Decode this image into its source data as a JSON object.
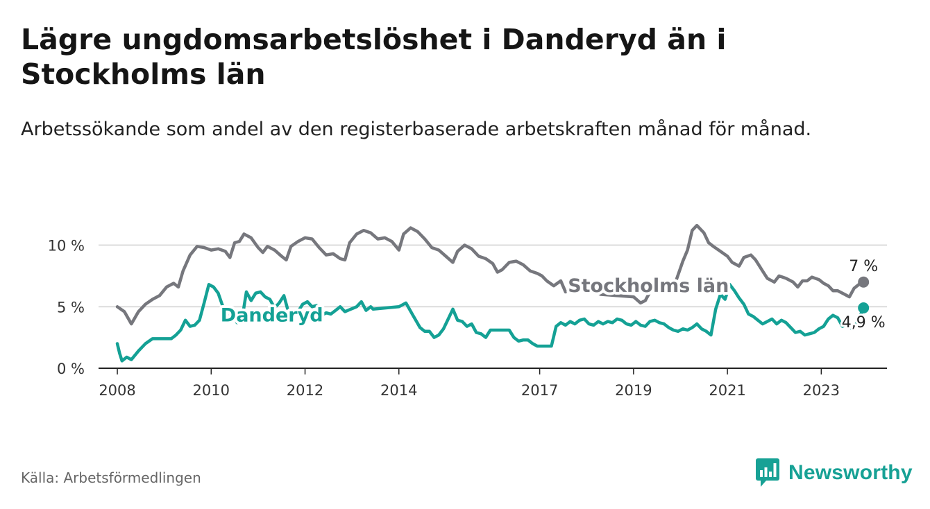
{
  "header": {
    "title": "Lägre ungdomsarbetslöshet i Danderyd än i Stockholms län",
    "subtitle": "Arbetssökande som andel av den registerbaserade arbetskraften månad för månad."
  },
  "footer": {
    "source": "Källa: Arbetsförmedlingen",
    "brand": "Newsworthy"
  },
  "colors": {
    "stockholm": "#76777d",
    "danderyd": "#14a195",
    "grid": "#dcdcdc",
    "axis": "#222222",
    "brand": "#17a195"
  },
  "chart_data": {
    "type": "line",
    "title": "Lägre ungdomsarbetslöshet i Danderyd än i Stockholms län",
    "xlabel": "",
    "ylabel": "",
    "xlim": [
      2007.6,
      2024.4
    ],
    "ylim": [
      0,
      12
    ],
    "y_ticks": [
      {
        "value": 0,
        "label": "0 %"
      },
      {
        "value": 5,
        "label": "5 %"
      },
      {
        "value": 10,
        "label": "10 %"
      }
    ],
    "x_ticks": [
      {
        "value": 2008,
        "label": "2008"
      },
      {
        "value": 2010,
        "label": "2010"
      },
      {
        "value": 2012,
        "label": "2012"
      },
      {
        "value": 2014,
        "label": "2014"
      },
      {
        "value": 2017,
        "label": "2017"
      },
      {
        "value": 2019,
        "label": "2019"
      },
      {
        "value": 2021,
        "label": "2021"
      },
      {
        "value": 2023,
        "label": "2023"
      }
    ],
    "grid": true,
    "series": [
      {
        "name": "Stockholms län",
        "label": "Stockholms län",
        "end_label": "7 %",
        "color": "#76777d",
        "label_at": [
          2017.6,
          6.2
        ],
        "points": [
          [
            2008.0,
            5.0
          ],
          [
            2008.15,
            4.6
          ],
          [
            2008.3,
            3.6
          ],
          [
            2008.45,
            4.6
          ],
          [
            2008.6,
            5.2
          ],
          [
            2008.75,
            5.6
          ],
          [
            2008.9,
            5.9
          ],
          [
            2009.05,
            6.6
          ],
          [
            2009.2,
            6.9
          ],
          [
            2009.3,
            6.6
          ],
          [
            2009.4,
            7.9
          ],
          [
            2009.55,
            9.2
          ],
          [
            2009.7,
            9.9
          ],
          [
            2009.85,
            9.8
          ],
          [
            2010.0,
            9.6
          ],
          [
            2010.15,
            9.7
          ],
          [
            2010.3,
            9.5
          ],
          [
            2010.4,
            9.0
          ],
          [
            2010.5,
            10.2
          ],
          [
            2010.6,
            10.3
          ],
          [
            2010.7,
            10.9
          ],
          [
            2010.85,
            10.6
          ],
          [
            2011.0,
            9.8
          ],
          [
            2011.1,
            9.4
          ],
          [
            2011.2,
            9.9
          ],
          [
            2011.35,
            9.6
          ],
          [
            2011.5,
            9.1
          ],
          [
            2011.6,
            8.8
          ],
          [
            2011.7,
            9.9
          ],
          [
            2011.85,
            10.3
          ],
          [
            2012.0,
            10.6
          ],
          [
            2012.15,
            10.5
          ],
          [
            2012.3,
            9.8
          ],
          [
            2012.45,
            9.2
          ],
          [
            2012.6,
            9.3
          ],
          [
            2012.75,
            8.9
          ],
          [
            2012.85,
            8.8
          ],
          [
            2012.95,
            10.2
          ],
          [
            2013.1,
            10.9
          ],
          [
            2013.25,
            11.2
          ],
          [
            2013.4,
            11.0
          ],
          [
            2013.55,
            10.5
          ],
          [
            2013.7,
            10.6
          ],
          [
            2013.85,
            10.3
          ],
          [
            2014.0,
            9.6
          ],
          [
            2014.1,
            10.9
          ],
          [
            2014.25,
            11.4
          ],
          [
            2014.4,
            11.1
          ],
          [
            2014.55,
            10.5
          ],
          [
            2014.7,
            9.8
          ],
          [
            2014.85,
            9.6
          ],
          [
            2015.0,
            9.1
          ],
          [
            2015.15,
            8.6
          ],
          [
            2015.25,
            9.5
          ],
          [
            2015.4,
            10.0
          ],
          [
            2015.55,
            9.7
          ],
          [
            2015.7,
            9.1
          ],
          [
            2015.85,
            8.9
          ],
          [
            2016.0,
            8.5
          ],
          [
            2016.1,
            7.8
          ],
          [
            2016.2,
            8.0
          ],
          [
            2016.35,
            8.6
          ],
          [
            2016.5,
            8.7
          ],
          [
            2016.65,
            8.4
          ],
          [
            2016.8,
            7.9
          ],
          [
            2016.95,
            7.7
          ],
          [
            2017.05,
            7.5
          ],
          [
            2017.15,
            7.1
          ],
          [
            2017.3,
            6.7
          ],
          [
            2017.45,
            7.1
          ],
          [
            2017.55,
            6.2
          ],
          [
            2018.0,
            6.7
          ],
          [
            2018.3,
            6.0
          ],
          [
            2019.0,
            5.8
          ],
          [
            2019.15,
            5.3
          ],
          [
            2019.25,
            5.5
          ],
          [
            2019.35,
            6.2
          ],
          [
            2019.85,
            6.5
          ],
          [
            2019.95,
            7.6
          ],
          [
            2020.05,
            8.7
          ],
          [
            2020.15,
            9.6
          ],
          [
            2020.25,
            11.2
          ],
          [
            2020.35,
            11.6
          ],
          [
            2020.5,
            11.0
          ],
          [
            2020.6,
            10.2
          ],
          [
            2020.7,
            9.9
          ],
          [
            2020.85,
            9.5
          ],
          [
            2021.0,
            9.1
          ],
          [
            2021.1,
            8.6
          ],
          [
            2021.25,
            8.3
          ],
          [
            2021.35,
            9.0
          ],
          [
            2021.5,
            9.2
          ],
          [
            2021.6,
            8.8
          ],
          [
            2021.75,
            7.9
          ],
          [
            2021.85,
            7.3
          ],
          [
            2022.0,
            7.0
          ],
          [
            2022.1,
            7.5
          ],
          [
            2022.25,
            7.3
          ],
          [
            2022.4,
            7.0
          ],
          [
            2022.5,
            6.6
          ],
          [
            2022.6,
            7.1
          ],
          [
            2022.7,
            7.1
          ],
          [
            2022.8,
            7.4
          ],
          [
            2022.95,
            7.2
          ],
          [
            2023.05,
            6.9
          ],
          [
            2023.15,
            6.7
          ],
          [
            2023.25,
            6.3
          ],
          [
            2023.35,
            6.3
          ],
          [
            2023.5,
            6.0
          ],
          [
            2023.6,
            5.8
          ],
          [
            2023.7,
            6.5
          ],
          [
            2023.8,
            6.8
          ],
          [
            2023.9,
            7.0
          ]
        ]
      },
      {
        "name": "Danderyd",
        "label": "Danderyd",
        "end_label": "4,9 %",
        "color": "#14a195",
        "label_at": [
          2010.2,
          3.8
        ],
        "points": [
          [
            2008.0,
            2.0
          ],
          [
            2008.05,
            1.2
          ],
          [
            2008.1,
            0.6
          ],
          [
            2008.2,
            0.9
          ],
          [
            2008.3,
            0.7
          ],
          [
            2008.45,
            1.4
          ],
          [
            2008.6,
            2.0
          ],
          [
            2008.75,
            2.4
          ],
          [
            2008.9,
            2.4
          ],
          [
            2009.05,
            2.4
          ],
          [
            2009.15,
            2.4
          ],
          [
            2009.25,
            2.7
          ],
          [
            2009.35,
            3.1
          ],
          [
            2009.45,
            3.9
          ],
          [
            2009.55,
            3.4
          ],
          [
            2009.65,
            3.5
          ],
          [
            2009.75,
            3.9
          ],
          [
            2009.85,
            5.3
          ],
          [
            2009.95,
            6.8
          ],
          [
            2010.05,
            6.6
          ],
          [
            2010.15,
            6.1
          ],
          [
            2010.25,
            5.0
          ],
          [
            2010.35,
            4.3
          ],
          [
            2010.45,
            4.6
          ],
          [
            2010.55,
            3.7
          ],
          [
            2010.65,
            3.8
          ],
          [
            2010.75,
            6.2
          ],
          [
            2010.85,
            5.5
          ],
          [
            2010.95,
            6.1
          ],
          [
            2011.05,
            6.2
          ],
          [
            2011.15,
            5.8
          ],
          [
            2011.25,
            5.6
          ],
          [
            2011.35,
            4.9
          ],
          [
            2011.45,
            5.3
          ],
          [
            2011.55,
            5.9
          ],
          [
            2011.65,
            4.5
          ],
          [
            2011.75,
            4.7
          ],
          [
            2011.85,
            4.6
          ],
          [
            2011.95,
            5.2
          ],
          [
            2012.05,
            5.4
          ],
          [
            2012.15,
            5.0
          ],
          [
            2012.25,
            5.1
          ],
          [
            2012.35,
            4.3
          ],
          [
            2012.45,
            4.5
          ],
          [
            2012.55,
            4.4
          ],
          [
            2012.65,
            4.7
          ],
          [
            2012.75,
            5.0
          ],
          [
            2012.85,
            4.6
          ],
          [
            2013.1,
            5.0
          ],
          [
            2013.2,
            5.4
          ],
          [
            2013.3,
            4.7
          ],
          [
            2013.4,
            5.0
          ],
          [
            2013.45,
            4.8
          ],
          [
            2014.0,
            5.0
          ],
          [
            2014.15,
            5.3
          ],
          [
            2014.3,
            4.3
          ],
          [
            2014.45,
            3.3
          ],
          [
            2014.55,
            3.0
          ],
          [
            2014.65,
            3.0
          ],
          [
            2014.75,
            2.5
          ],
          [
            2014.85,
            2.7
          ],
          [
            2014.95,
            3.2
          ],
          [
            2015.05,
            4.0
          ],
          [
            2015.15,
            4.8
          ],
          [
            2015.25,
            3.9
          ],
          [
            2015.35,
            3.8
          ],
          [
            2015.45,
            3.4
          ],
          [
            2015.55,
            3.6
          ],
          [
            2015.65,
            2.9
          ],
          [
            2015.75,
            2.8
          ],
          [
            2015.85,
            2.5
          ],
          [
            2015.95,
            3.1
          ],
          [
            2016.1,
            3.1
          ],
          [
            2016.25,
            3.1
          ],
          [
            2016.35,
            3.1
          ],
          [
            2016.45,
            2.5
          ],
          [
            2016.55,
            2.2
          ],
          [
            2016.65,
            2.3
          ],
          [
            2016.75,
            2.3
          ],
          [
            2016.85,
            2.0
          ],
          [
            2016.95,
            1.8
          ],
          [
            2017.1,
            1.8
          ],
          [
            2017.25,
            1.8
          ],
          [
            2017.35,
            3.4
          ],
          [
            2017.45,
            3.7
          ],
          [
            2017.55,
            3.5
          ],
          [
            2017.65,
            3.8
          ],
          [
            2017.75,
            3.6
          ],
          [
            2017.85,
            3.9
          ],
          [
            2017.95,
            4.0
          ],
          [
            2018.05,
            3.6
          ],
          [
            2018.15,
            3.5
          ],
          [
            2018.25,
            3.8
          ],
          [
            2018.35,
            3.6
          ],
          [
            2018.45,
            3.8
          ],
          [
            2018.55,
            3.7
          ],
          [
            2018.65,
            4.0
          ],
          [
            2018.75,
            3.9
          ],
          [
            2018.85,
            3.6
          ],
          [
            2018.95,
            3.5
          ],
          [
            2019.05,
            3.8
          ],
          [
            2019.15,
            3.5
          ],
          [
            2019.25,
            3.4
          ],
          [
            2019.35,
            3.8
          ],
          [
            2019.45,
            3.9
          ],
          [
            2019.55,
            3.7
          ],
          [
            2019.65,
            3.6
          ],
          [
            2019.75,
            3.3
          ],
          [
            2019.85,
            3.1
          ],
          [
            2019.95,
            3.0
          ],
          [
            2020.05,
            3.2
          ],
          [
            2020.15,
            3.1
          ],
          [
            2020.25,
            3.3
          ],
          [
            2020.35,
            3.6
          ],
          [
            2020.45,
            3.2
          ],
          [
            2020.55,
            3.0
          ],
          [
            2020.65,
            2.7
          ],
          [
            2020.75,
            4.8
          ],
          [
            2020.85,
            6.0
          ],
          [
            2020.95,
            5.6
          ],
          [
            2021.05,
            6.8
          ],
          [
            2021.15,
            6.3
          ],
          [
            2021.25,
            5.7
          ],
          [
            2021.35,
            5.2
          ],
          [
            2021.45,
            4.4
          ],
          [
            2021.55,
            4.2
          ],
          [
            2021.65,
            3.9
          ],
          [
            2021.75,
            3.6
          ],
          [
            2021.85,
            3.8
          ],
          [
            2021.95,
            4.0
          ],
          [
            2022.05,
            3.6
          ],
          [
            2022.15,
            3.9
          ],
          [
            2022.25,
            3.7
          ],
          [
            2022.35,
            3.3
          ],
          [
            2022.45,
            2.9
          ],
          [
            2022.55,
            3.0
          ],
          [
            2022.65,
            2.7
          ],
          [
            2022.75,
            2.8
          ],
          [
            2022.85,
            2.9
          ],
          [
            2022.95,
            3.2
          ],
          [
            2023.05,
            3.4
          ],
          [
            2023.15,
            4.0
          ],
          [
            2023.25,
            4.3
          ],
          [
            2023.35,
            4.1
          ],
          [
            2023.45,
            3.4
          ],
          [
            2023.55,
            3.6
          ],
          [
            2023.65,
            3.2
          ],
          [
            2023.75,
            3.6
          ],
          [
            2023.9,
            4.9
          ]
        ]
      }
    ]
  }
}
